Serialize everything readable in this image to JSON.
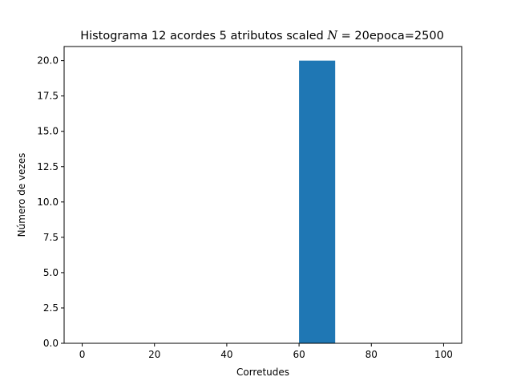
{
  "chart_data": {
    "type": "bar",
    "title_main": "Histograma 12 acordes 5 atributos scaled ",
    "title_math": "N",
    "title_eq": " = 20",
    "title_tail": "epoca=2500",
    "xlabel": "Corretudes",
    "ylabel": "Número de vezes",
    "xlim": [
      -5,
      105
    ],
    "ylim": [
      0,
      21
    ],
    "xticks": [
      0,
      20,
      40,
      60,
      80,
      100
    ],
    "xtick_labels": [
      "0",
      "20",
      "40",
      "60",
      "80",
      "100"
    ],
    "yticks": [
      0,
      2.5,
      5,
      7.5,
      10,
      12.5,
      15,
      17.5,
      20
    ],
    "ytick_labels": [
      "0.0",
      "2.5",
      "5.0",
      "7.5",
      "10.0",
      "12.5",
      "15.0",
      "17.5",
      "20.0"
    ],
    "bins": [
      {
        "x0": 0,
        "x1": 10,
        "count": 0
      },
      {
        "x0": 10,
        "x1": 20,
        "count": 0
      },
      {
        "x0": 20,
        "x1": 30,
        "count": 0
      },
      {
        "x0": 30,
        "x1": 40,
        "count": 0
      },
      {
        "x0": 40,
        "x1": 50,
        "count": 0
      },
      {
        "x0": 50,
        "x1": 60,
        "count": 0
      },
      {
        "x0": 60,
        "x1": 70,
        "count": 20
      },
      {
        "x0": 70,
        "x1": 80,
        "count": 0
      },
      {
        "x0": 80,
        "x1": 90,
        "count": 0
      },
      {
        "x0": 90,
        "x1": 100,
        "count": 0
      }
    ],
    "bar_color": "#1f77b4",
    "grid": false,
    "legend": "none"
  }
}
